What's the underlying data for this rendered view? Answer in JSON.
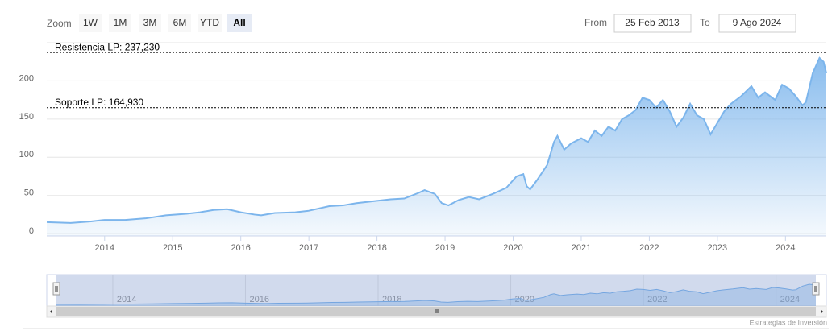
{
  "zoom": {
    "label": "Zoom",
    "buttons": [
      "1W",
      "1M",
      "3M",
      "6M",
      "YTD",
      "All"
    ],
    "selected": "All"
  },
  "range": {
    "from_label": "From",
    "from": "25 Feb 2013",
    "to_label": "To",
    "to": "9 Ago 2024"
  },
  "chart_data": {
    "type": "area",
    "color": "#7cb5ec",
    "x": [
      2013.15,
      2013.5,
      2013.8,
      2014.0,
      2014.3,
      2014.6,
      2014.9,
      2015.2,
      2015.4,
      2015.6,
      2015.8,
      2016.0,
      2016.2,
      2016.3,
      2016.5,
      2016.8,
      2017.0,
      2017.3,
      2017.5,
      2017.7,
      2018.0,
      2018.2,
      2018.4,
      2018.6,
      2018.7,
      2018.85,
      2018.95,
      2019.05,
      2019.2,
      2019.35,
      2019.5,
      2019.7,
      2019.9,
      2020.05,
      2020.15,
      2020.2,
      2020.25,
      2020.35,
      2020.5,
      2020.6,
      2020.65,
      2020.75,
      2020.85,
      2021.0,
      2021.1,
      2021.2,
      2021.3,
      2021.4,
      2021.5,
      2021.6,
      2021.7,
      2021.8,
      2021.9,
      2022.0,
      2022.1,
      2022.2,
      2022.3,
      2022.4,
      2022.5,
      2022.6,
      2022.7,
      2022.8,
      2022.9,
      2023.0,
      2023.1,
      2023.2,
      2023.35,
      2023.5,
      2023.6,
      2023.7,
      2023.85,
      2023.95,
      2024.05,
      2024.15,
      2024.25,
      2024.3,
      2024.4,
      2024.5,
      2024.56,
      2024.6
    ],
    "values": [
      15,
      14,
      16,
      18,
      18,
      20,
      24,
      26,
      28,
      31,
      32,
      28,
      25,
      24,
      27,
      28,
      30,
      36,
      37,
      40,
      43,
      45,
      46,
      53,
      57,
      52,
      40,
      37,
      44,
      48,
      45,
      52,
      60,
      75,
      78,
      62,
      58,
      70,
      90,
      120,
      128,
      110,
      118,
      125,
      120,
      135,
      128,
      140,
      135,
      150,
      155,
      162,
      178,
      175,
      165,
      175,
      160,
      140,
      152,
      170,
      155,
      150,
      130,
      145,
      160,
      170,
      180,
      193,
      178,
      185,
      175,
      195,
      190,
      180,
      168,
      172,
      210,
      230,
      225,
      210
    ],
    "xlim": [
      2013.15,
      2024.6
    ],
    "xticks": [
      2014,
      2015,
      2016,
      2017,
      2018,
      2019,
      2020,
      2021,
      2022,
      2023,
      2024
    ],
    "ylim": [
      -3,
      250
    ],
    "yticks": [
      0,
      50,
      100,
      150,
      200
    ],
    "grid": true,
    "plot_lines": [
      {
        "value": 237.23,
        "label": "Resistencia LP: 237,230"
      },
      {
        "value": 164.93,
        "label": "Soporte LP: 164,930"
      }
    ],
    "navigator": {
      "xticks": [
        2014,
        2016,
        2018,
        2020,
        2022,
        2024
      ]
    }
  },
  "credits": "Estrategias de Inversión"
}
